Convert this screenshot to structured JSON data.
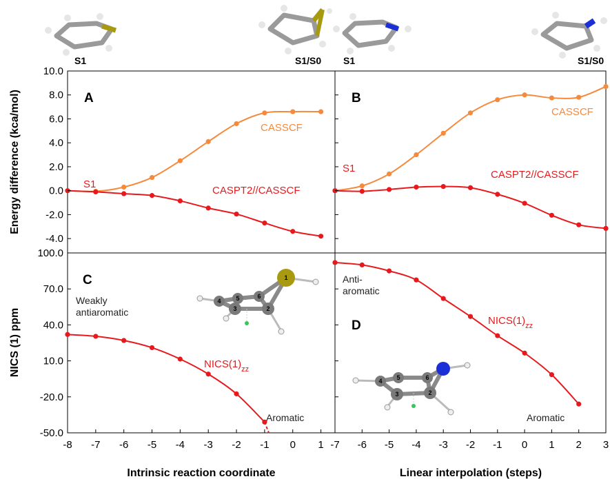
{
  "colors": {
    "casscf": "#f58a3c",
    "caspt2": "#e8191c",
    "nics": "#e8191c",
    "sulfur": "#a89a10",
    "nitrogen": "#1a2fd6",
    "carbon": "#8a8a8a"
  },
  "molecules": {
    "left_start": "S1",
    "left_end": "S1/S0",
    "right_start": "S1",
    "right_end": "S1/S0"
  },
  "axes": {
    "energy_ylabel": "Energy difference (kca/mol)",
    "nics_ylabel": "NICS (1) ppm",
    "left_xlabel": "Intrinsic reaction coordinate",
    "right_xlabel": "Linear interpolation (steps)"
  },
  "chart_data": [
    {
      "panel": "A",
      "type": "line",
      "x": [
        -8,
        -7,
        -6,
        -5,
        -4,
        -3,
        -2,
        -1,
        0,
        1
      ],
      "xlim": [
        -8,
        1.5
      ],
      "ylim": [
        -5.2,
        10
      ],
      "yticks": [
        "10.0",
        "8.0",
        "6.0",
        "4.0",
        "2.0",
        "0.0",
        "-2.0",
        "-4.0"
      ],
      "series": [
        {
          "name": "CASSCF",
          "color": "#f58a3c",
          "values": [
            0.0,
            -0.05,
            0.3,
            1.1,
            2.5,
            4.1,
            5.6,
            6.5,
            6.6,
            6.6
          ]
        },
        {
          "name": "CASPT2//CASSCF",
          "color": "#e8191c",
          "values": [
            0.0,
            -0.1,
            -0.25,
            -0.4,
            -0.85,
            -1.45,
            -1.95,
            -2.7,
            -3.4,
            -3.8
          ]
        }
      ],
      "annotations": {
        "state": "S1",
        "casscf": "CASSCF",
        "caspt2": "CASPT2//CASSCF"
      }
    },
    {
      "panel": "B",
      "type": "line",
      "x": [
        -7,
        -6,
        -5,
        -4,
        -3,
        -2,
        -1,
        0,
        1,
        2,
        3
      ],
      "xlim": [
        -7,
        3
      ],
      "ylim": [
        -5.2,
        10
      ],
      "series": [
        {
          "name": "CASSCF",
          "color": "#f58a3c",
          "values": [
            0.0,
            0.4,
            1.4,
            3.0,
            4.8,
            6.5,
            7.6,
            8.0,
            7.75,
            7.8,
            8.7
          ]
        },
        {
          "name": "CASPT2//CASSCF",
          "color": "#e8191c",
          "values": [
            0.0,
            -0.05,
            0.1,
            0.3,
            0.35,
            0.25,
            -0.3,
            -1.05,
            -2.05,
            -2.85,
            -3.15
          ]
        }
      ],
      "annotations": {
        "state": "S1",
        "casscf": "CASSCF",
        "caspt2": "CASPT2//CASSCF"
      }
    },
    {
      "panel": "C",
      "type": "line",
      "x": [
        -8,
        -7,
        -6,
        -5,
        -4,
        -3,
        -2,
        -1
      ],
      "xlim": [
        -8,
        1.5
      ],
      "xticks": [
        "-8",
        "-7",
        "-6",
        "-5",
        "-4",
        "-3",
        "-2",
        "-1",
        "0",
        "1"
      ],
      "ylim": [
        -50,
        100
      ],
      "yticks": [
        "100.0",
        "70.0",
        "40.0",
        "10.0",
        "-20.0",
        "-50.0"
      ],
      "series": [
        {
          "name": "NICS(1)zz",
          "color": "#e8191c",
          "values": [
            32,
            30.5,
            27,
            21,
            11.5,
            -1,
            -17.5,
            -41
          ]
        }
      ],
      "extrapolated_to": [
        -0.85,
        -50
      ],
      "annotations": {
        "upper": "Weakly antiaromatic",
        "lower": "Aromatic",
        "series": "NICS(1)zz"
      }
    },
    {
      "panel": "D",
      "type": "line",
      "x": [
        -7,
        -6,
        -5,
        -4,
        -3,
        -2,
        -1,
        0,
        1,
        2
      ],
      "xlim": [
        -7,
        3
      ],
      "xticks": [
        "-7",
        "-6",
        "-5",
        "-4",
        "-3",
        "-2",
        "-1",
        "0",
        "1",
        "2",
        "3"
      ],
      "ylim": [
        -50,
        100
      ],
      "series": [
        {
          "name": "NICS(1)zz",
          "color": "#e8191c",
          "values": [
            92,
            90,
            85,
            77.5,
            62,
            47,
            31,
            16.5,
            -1.5,
            -26
          ]
        }
      ],
      "annotations": {
        "upper": "Anti-aromatic",
        "lower": "Aromatic",
        "series": "NICS(1)zz"
      }
    }
  ]
}
